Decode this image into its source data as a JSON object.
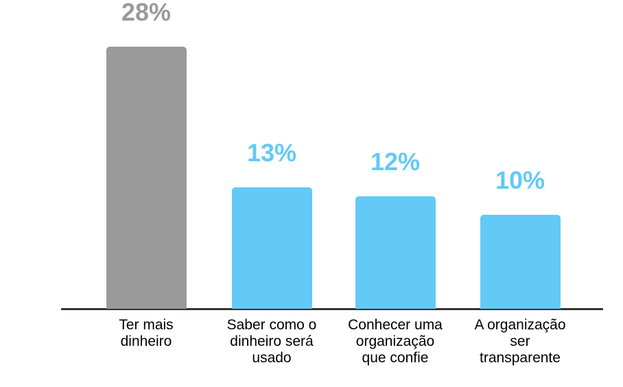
{
  "chart_data": {
    "type": "bar",
    "title": "",
    "xlabel": "",
    "ylabel": "",
    "categories": [
      "Ter mais\ndinheiro",
      "Saber como o\ndinheiro será\nusado",
      "Conhecer uma\norganização\nque confie",
      "A organização\nser\ntransparente"
    ],
    "values": [
      28,
      13,
      12,
      10
    ],
    "value_labels": [
      "28%",
      "13%",
      "12%",
      "10%"
    ],
    "bar_colors": [
      "#9a9a9a",
      "#63c9f6",
      "#63c9f6",
      "#63c9f6"
    ],
    "value_label_colors": [
      "#9a9a9a",
      "#63c9f6",
      "#63c9f6",
      "#63c9f6"
    ],
    "category_text_color": "#000000",
    "axis_line_color": "#333333",
    "background_color": "#ffffff",
    "ylim": [
      0,
      30
    ],
    "grid": false,
    "legend_position": "none"
  }
}
